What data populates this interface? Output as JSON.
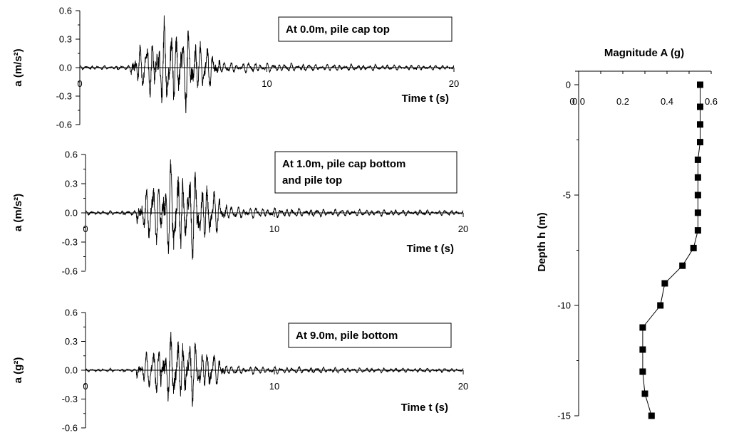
{
  "chart_data": [
    {
      "type": "line",
      "annotation": [
        "At 0.0m, pile cap top"
      ],
      "xlabel": "Time t (s)",
      "ylabel": "a (m/s²)",
      "xlim": [
        0,
        20
      ],
      "ylim": [
        -0.6,
        0.6
      ],
      "x_ticks": [
        "0",
        "10",
        "20"
      ],
      "y_ticks": [
        "0.6",
        "0.3",
        "0.0",
        "-0.3",
        "-0.6"
      ],
      "peak_pos": 0.55,
      "peak_neg": -0.48,
      "strong_motion_window_s": [
        3.0,
        7.0
      ],
      "duration_s": 20
    },
    {
      "type": "line",
      "annotation": [
        "At 1.0m, pile cap bottom",
        "and pile top"
      ],
      "xlabel": "Time t (s)",
      "ylabel": "a (m/s²)",
      "xlim": [
        0,
        20
      ],
      "ylim": [
        -0.6,
        0.6
      ],
      "x_ticks": [
        "0",
        "10",
        "20"
      ],
      "y_ticks": [
        "0.6",
        "0.3",
        "0.0",
        "-0.3",
        "-0.6"
      ],
      "peak_pos": 0.55,
      "peak_neg": -0.48,
      "strong_motion_window_s": [
        3.0,
        7.0
      ],
      "duration_s": 20
    },
    {
      "type": "line",
      "annotation": [
        "At 9.0m, pile bottom"
      ],
      "xlabel": "Time t (s)",
      "ylabel": "a (g²)",
      "xlim": [
        0,
        20
      ],
      "ylim": [
        -0.6,
        0.6
      ],
      "x_ticks": [
        "0",
        "10",
        "20"
      ],
      "y_ticks": [
        "0.6",
        "0.3",
        "0.0",
        "-0.3",
        "-0.6"
      ],
      "peak_pos": 0.4,
      "peak_neg": -0.38,
      "strong_motion_window_s": [
        3.0,
        7.0
      ],
      "duration_s": 20
    },
    {
      "type": "scatter",
      "title": "Magnitude A (g)",
      "ylabel": "Depth h (m)",
      "xlim": [
        0,
        0.6
      ],
      "ylim": [
        -15,
        0
      ],
      "x_ticks": [
        "0.0",
        "0.2",
        "0.4",
        "0.6"
      ],
      "y_ticks": [
        "0",
        "-5",
        "-10",
        "-15"
      ],
      "x_tick_extra": "0",
      "points": [
        {
          "x": 0.55,
          "y": 0
        },
        {
          "x": 0.55,
          "y": -1
        },
        {
          "x": 0.55,
          "y": -1.8
        },
        {
          "x": 0.55,
          "y": -2.6
        },
        {
          "x": 0.54,
          "y": -3.4
        },
        {
          "x": 0.54,
          "y": -4.2
        },
        {
          "x": 0.54,
          "y": -5
        },
        {
          "x": 0.54,
          "y": -5.8
        },
        {
          "x": 0.54,
          "y": -6.6
        },
        {
          "x": 0.52,
          "y": -7.4
        },
        {
          "x": 0.47,
          "y": -8.2
        },
        {
          "x": 0.39,
          "y": -9
        },
        {
          "x": 0.37,
          "y": -10
        },
        {
          "x": 0.29,
          "y": -11
        },
        {
          "x": 0.29,
          "y": -12
        },
        {
          "x": 0.29,
          "y": -13
        },
        {
          "x": 0.3,
          "y": -14
        },
        {
          "x": 0.33,
          "y": -15
        }
      ],
      "marker": "square",
      "connected": true,
      "xaxis_position": "top"
    }
  ]
}
